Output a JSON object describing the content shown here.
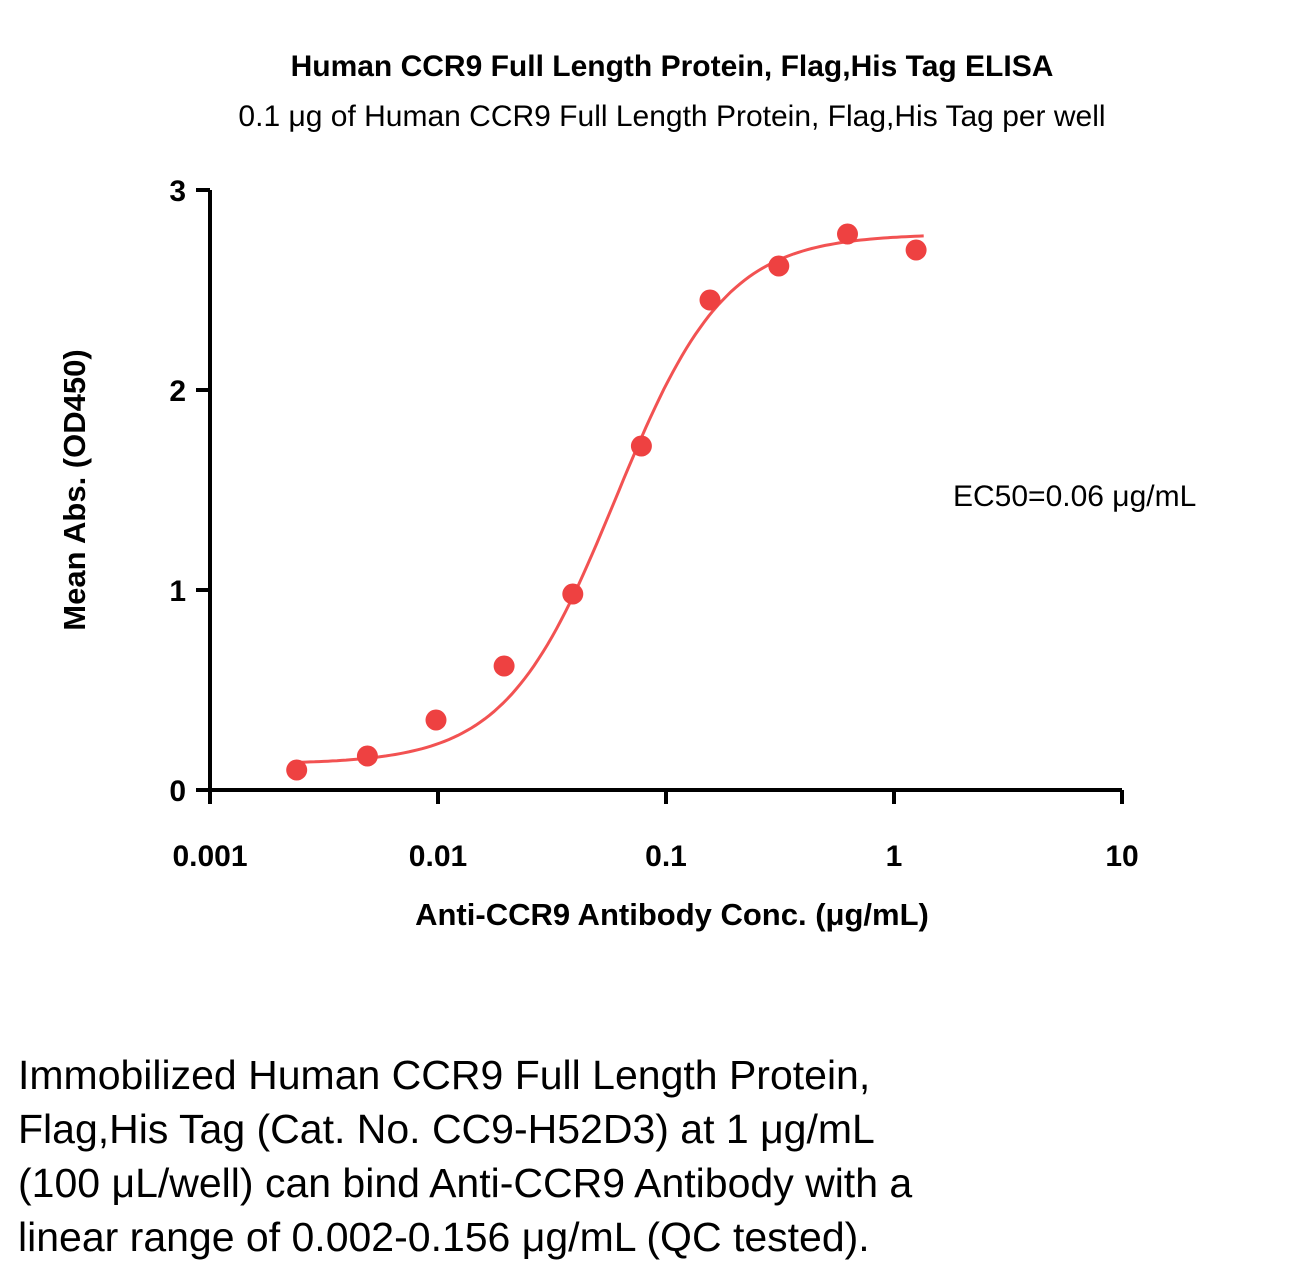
{
  "chart_data": {
    "type": "scatter",
    "title": "Human CCR9 Full Length Protein, Flag,His Tag ELISA",
    "subtitle": "0.1 μg of Human CCR9 Full Length Protein, Flag,His Tag per well",
    "xlabel": "Anti-CCR9 Antibody Conc. (μg/mL)",
    "ylabel": "Mean Abs. (OD450)",
    "annotation": "EC50=0.06 μg/mL",
    "xscale": "log",
    "xlim": [
      0.001,
      10
    ],
    "ylim": [
      0,
      3
    ],
    "xticks": [
      0.001,
      0.01,
      0.1,
      1,
      10
    ],
    "xtick_labels": [
      "0.001",
      "0.01",
      "0.1",
      "1",
      "10"
    ],
    "yticks": [
      0,
      1,
      2,
      3
    ],
    "ytick_labels": [
      "0",
      "1",
      "2",
      "3"
    ],
    "grid": false,
    "legend": "none",
    "series": [
      {
        "name": "Anti-CCR9 Antibody",
        "x": [
          0.0024,
          0.0049,
          0.0098,
          0.0195,
          0.039,
          0.078,
          0.156,
          0.3125,
          0.625,
          1.25
        ],
        "y": [
          0.1,
          0.17,
          0.35,
          0.62,
          0.98,
          1.72,
          2.45,
          2.62,
          2.78,
          2.7
        ],
        "marker": "circle",
        "marker_radius": 10.5,
        "marker_color": "#ee4141"
      }
    ],
    "fit_curve": {
      "model": "4PL",
      "bottom": 0.13,
      "top": 2.78,
      "ec50": 0.06,
      "hill": 1.8,
      "x_range": [
        0.0024,
        1.35
      ],
      "color": "#f25252",
      "stroke_width": 3
    },
    "axis_color": "#000000"
  },
  "caption": {
    "lines": [
      "Immobilized Human CCR9 Full Length Protein,",
      "Flag,His Tag (Cat. No. CC9-H52D3) at 1 μg/mL",
      "(100 μL/well) can bind Anti-CCR9 Antibody with a",
      "linear range of 0.002-0.156 μg/mL (QC tested)."
    ]
  }
}
